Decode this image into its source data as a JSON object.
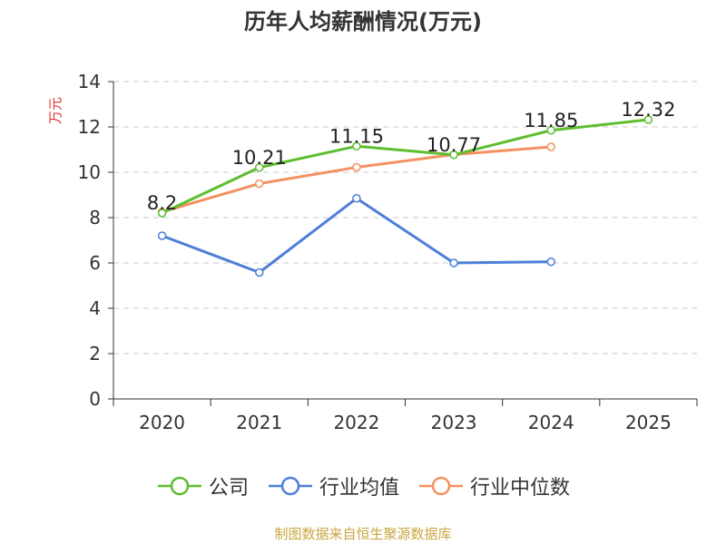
{
  "chart_data": {
    "type": "line",
    "title": "历年人均薪酬情况(万元)",
    "ylabel": "万元",
    "xlabel": "",
    "categories": [
      "2020",
      "2021",
      "2022",
      "2023",
      "2024",
      "2025"
    ],
    "ylim": [
      0,
      14
    ],
    "yticks": [
      0,
      2,
      4,
      6,
      8,
      10,
      12,
      14
    ],
    "grid": true,
    "legend_position": "bottom",
    "series": [
      {
        "name": "公司",
        "color": "#5ebe2f",
        "values": [
          8.2,
          10.21,
          11.15,
          10.77,
          11.85,
          12.32
        ],
        "labels": [
          "8.2",
          "10.21",
          "11.15",
          "10.77",
          "11.85",
          "12.32"
        ]
      },
      {
        "name": "行业均值",
        "color": "#4d7fd9",
        "values": [
          7.2,
          5.58,
          8.85,
          6.0,
          6.05,
          null
        ]
      },
      {
        "name": "行业中位数",
        "color": "#f39260",
        "values": [
          8.25,
          9.5,
          10.22,
          10.78,
          11.12,
          null
        ]
      }
    ]
  },
  "source_text": "制图数据来自恒生聚源数据库"
}
